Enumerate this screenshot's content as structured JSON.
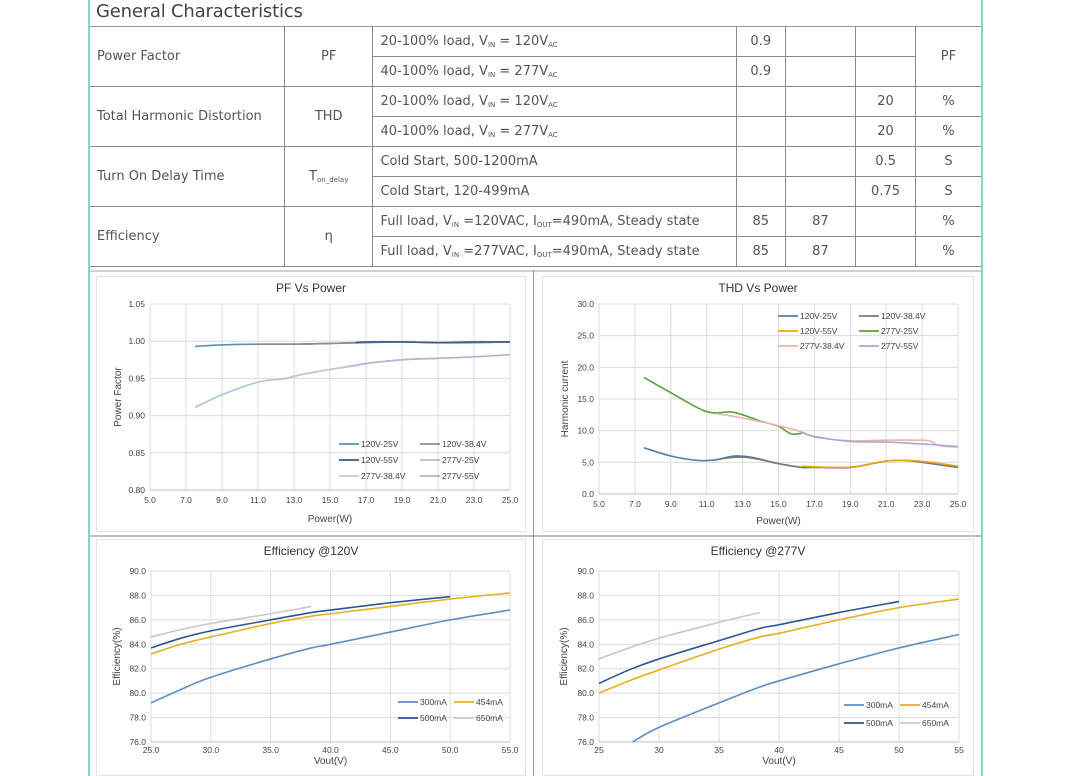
{
  "section_title": "General Characteristics",
  "table": {
    "rows": [
      {
        "param": "Power Factor",
        "symbol": "PF",
        "symbol_sub": "",
        "conditions": [
          {
            "text": "20-100% load, V",
            "sub1": "IN",
            "mid": " = 120V",
            "sub2": "AC",
            "tail": "",
            "min": "0.9",
            "typ": "",
            "max": ""
          },
          {
            "text": "40-100% load, V",
            "sub1": "IN",
            "mid": " = 277V",
            "sub2": "AC",
            "tail": "",
            "min": "0.9",
            "typ": "",
            "max": ""
          }
        ],
        "unit": "PF",
        "unit_merged": true
      },
      {
        "param": "Total Harmonic Distortion",
        "symbol": "THD",
        "symbol_sub": "",
        "conditions": [
          {
            "text": "20-100% load, V",
            "sub1": "IN",
            "mid": " = 120V",
            "sub2": "AC",
            "tail": "",
            "min": "",
            "typ": "",
            "max": "20",
            "unit": "%"
          },
          {
            "text": "40-100% load, V",
            "sub1": "IN",
            "mid": " = 277V",
            "sub2": "AC",
            "tail": "",
            "min": "",
            "typ": "",
            "max": "20",
            "unit": "%"
          }
        ]
      },
      {
        "param": "Turn On Delay Time",
        "symbol": "T",
        "symbol_sub": "on_delay",
        "conditions": [
          {
            "text": "Cold Start, 500-1200mA",
            "sub1": "",
            "mid": "",
            "sub2": "",
            "tail": "",
            "min": "",
            "typ": "",
            "max": "0.5",
            "unit": "S"
          },
          {
            "text": "Cold Start, 120-499mA",
            "sub1": "",
            "mid": "",
            "sub2": "",
            "tail": "",
            "min": "",
            "typ": "",
            "max": "0.75",
            "unit": "S"
          }
        ]
      },
      {
        "param": "Efficiency",
        "symbol": "η",
        "symbol_sub": "",
        "conditions": [
          {
            "text": "Full load, V",
            "sub1": "IN",
            "mid": " =120VAC, I",
            "sub2": "OUT",
            "tail": "=490mA, Steady state",
            "min": "85",
            "typ": "87",
            "max": "",
            "unit": "%"
          },
          {
            "text": "Full load, V",
            "sub1": "IN",
            "mid": " =277VAC, I",
            "sub2": "OUT",
            "tail": "=490mA, Steady state",
            "min": "85",
            "typ": "87",
            "max": "",
            "unit": "%"
          }
        ]
      }
    ]
  },
  "chart_data": [
    {
      "id": "pf",
      "type": "line",
      "title": "PF Vs Power",
      "xlabel": "Power(W)",
      "ylabel": "Power Factor",
      "xlim": [
        5.0,
        25.0
      ],
      "ylim": [
        0.8,
        1.05
      ],
      "xticks": [
        "5.0",
        "7.0",
        "9.0",
        "11.0",
        "13.0",
        "15.0",
        "17.0",
        "19.0",
        "21.0",
        "23.0",
        "25.0"
      ],
      "yticks": [
        "0.80",
        "0.85",
        "0.90",
        "0.95",
        "1.00",
        "1.05"
      ],
      "grid": true,
      "legend_position": "bottom-right",
      "legend_columns": 2,
      "series": [
        {
          "name": "120V-25V",
          "color": "#5b8db8",
          "points": [
            [
              7.5,
              0.993
            ],
            [
              9,
              0.995
            ],
            [
              11,
              0.996
            ],
            [
              13,
              0.996
            ],
            [
              15,
              0.997
            ],
            [
              16.4,
              0.998
            ]
          ]
        },
        {
          "name": "120V-38.4V",
          "color": "#8c8c8c",
          "points": [
            [
              11,
              0.996
            ],
            [
              13,
              0.996
            ],
            [
              15,
              0.997
            ],
            [
              17,
              0.998
            ],
            [
              19,
              0.999
            ],
            [
              21,
              0.998
            ],
            [
              23,
              0.998
            ],
            [
              25,
              0.999
            ]
          ]
        },
        {
          "name": "120V-55V",
          "color": "#3a5a8c",
          "points": [
            [
              16.4,
              0.998
            ],
            [
              17,
              0.999
            ],
            [
              19,
              0.999
            ],
            [
              21,
              0.998
            ],
            [
              23,
              0.999
            ],
            [
              25,
              0.999
            ]
          ]
        },
        {
          "name": "277V-25V",
          "color": "#a9c4dc",
          "points": [
            [
              7.5,
              0.911
            ],
            [
              9,
              0.928
            ],
            [
              11,
              0.945
            ],
            [
              12.5,
              0.95
            ],
            [
              14,
              0.958
            ],
            [
              16.4,
              0.967
            ]
          ]
        },
        {
          "name": "277V-38.4V",
          "color": "#c9c9c9",
          "points": [
            [
              11.5,
              0.948
            ],
            [
              12.5,
              0.949
            ],
            [
              13,
              0.953
            ],
            [
              15,
              0.962
            ],
            [
              17,
              0.97
            ],
            [
              19,
              0.975
            ],
            [
              21,
              0.977
            ]
          ]
        },
        {
          "name": "277V-55V",
          "color": "#aeb4d6",
          "points": [
            [
              16.4,
              0.967
            ],
            [
              17,
              0.97
            ],
            [
              19,
              0.975
            ],
            [
              21,
              0.977
            ],
            [
              23,
              0.979
            ],
            [
              25,
              0.982
            ]
          ]
        }
      ]
    },
    {
      "id": "thd",
      "type": "line",
      "title": "THD Vs Power",
      "xlabel": "Power(W)",
      "ylabel": "Harmonic current",
      "xlim": [
        5.0,
        25.0
      ],
      "ylim": [
        0.0,
        30.0
      ],
      "xticks": [
        "5.0",
        "7.0",
        "9.0",
        "11.0",
        "13.0",
        "15.0",
        "17.0",
        "19.0",
        "21.0",
        "23.0",
        "25.0"
      ],
      "yticks": [
        "0.0",
        "5.0",
        "10.0",
        "15.0",
        "20.0",
        "25.0",
        "30.0"
      ],
      "grid": true,
      "legend_position": "top-right",
      "legend_columns": 2,
      "series": [
        {
          "name": "120V-25V",
          "color": "#4f7fae",
          "points": [
            [
              7.5,
              7.3
            ],
            [
              9,
              6.0
            ],
            [
              10.5,
              5.3
            ],
            [
              11.5,
              5.4
            ],
            [
              12.5,
              6.0
            ],
            [
              13.5,
              5.8
            ],
            [
              15,
              4.8
            ],
            [
              16.3,
              4.2
            ]
          ]
        },
        {
          "name": "120V-38.4V",
          "color": "#777777",
          "points": [
            [
              11.5,
              5.4
            ],
            [
              12.5,
              5.8
            ],
            [
              13.5,
              5.7
            ],
            [
              15,
              4.8
            ],
            [
              16.3,
              4.2
            ],
            [
              17,
              4.2
            ],
            [
              19,
              4.2
            ],
            [
              21,
              5.2
            ],
            [
              22,
              5.3
            ],
            [
              23,
              5.0
            ],
            [
              25,
              4.2
            ]
          ]
        },
        {
          "name": "120V-55V",
          "color": "#e6a817",
          "points": [
            [
              16.3,
              4.4
            ],
            [
              17,
              4.3
            ],
            [
              18.5,
              4.2
            ],
            [
              19.5,
              4.4
            ],
            [
              21,
              5.2
            ],
            [
              22.3,
              5.3
            ],
            [
              23.5,
              5.0
            ],
            [
              25,
              4.4
            ]
          ]
        },
        {
          "name": "277V-25V",
          "color": "#5aa23c",
          "points": [
            [
              7.5,
              18.4
            ],
            [
              9,
              16.0
            ],
            [
              11,
              13.0
            ],
            [
              12.5,
              12.9
            ],
            [
              14,
              11.5
            ],
            [
              15,
              10.7
            ],
            [
              15.7,
              9.5
            ],
            [
              16.3,
              9.6
            ]
          ]
        },
        {
          "name": "277V-38.4V",
          "color": "#e8b4aa",
          "points": [
            [
              11.5,
              12.7
            ],
            [
              13,
              12.0
            ],
            [
              15,
              10.8
            ],
            [
              16.3,
              9.8
            ],
            [
              17,
              9.0
            ],
            [
              19,
              8.4
            ],
            [
              21,
              8.5
            ],
            [
              23,
              8.5
            ],
            [
              23.5,
              8.3
            ],
            [
              24,
              7.6
            ],
            [
              25,
              7.4
            ]
          ]
        },
        {
          "name": "277V-55V",
          "color": "#a7a8d8",
          "points": [
            [
              16.3,
              9.7
            ],
            [
              17,
              9.1
            ],
            [
              19,
              8.3
            ],
            [
              21,
              8.2
            ],
            [
              23,
              7.9
            ],
            [
              25,
              7.5
            ]
          ]
        }
      ]
    },
    {
      "id": "eff120",
      "type": "line",
      "title": "Efficiency @120V",
      "xlabel": "Vout(V)",
      "ylabel": "Efficiency(%)",
      "xlim": [
        25.0,
        55.0
      ],
      "ylim": [
        76.0,
        90.0
      ],
      "xticks": [
        "25.0",
        "30.0",
        "35.0",
        "40.0",
        "45.0",
        "50.0",
        "55.0"
      ],
      "yticks": [
        "76.0",
        "78.0",
        "80.0",
        "82.0",
        "84.0",
        "86.0",
        "88.0",
        "90.0"
      ],
      "grid": true,
      "legend_position": "bottom-right",
      "legend_columns": 2,
      "series": [
        {
          "name": "300mA",
          "color": "#5b8fc7",
          "points": [
            [
              25,
              79.2
            ],
            [
              27.5,
              80.3
            ],
            [
              30,
              81.3
            ],
            [
              35,
              82.8
            ],
            [
              38.4,
              83.7
            ],
            [
              40,
              84.0
            ],
            [
              45,
              85.0
            ],
            [
              50,
              86.0
            ],
            [
              55,
              86.8
            ]
          ]
        },
        {
          "name": "454mA",
          "color": "#e8b020",
          "points": [
            [
              25,
              83.2
            ],
            [
              27.5,
              84.0
            ],
            [
              30,
              84.6
            ],
            [
              35,
              85.7
            ],
            [
              38.4,
              86.3
            ],
            [
              40,
              86.5
            ],
            [
              45,
              87.1
            ],
            [
              50,
              87.7
            ],
            [
              55,
              88.2
            ]
          ]
        },
        {
          "name": "500mA",
          "color": "#2f5597",
          "points": [
            [
              25,
              83.7
            ],
            [
              27.5,
              84.5
            ],
            [
              30,
              85.1
            ],
            [
              35,
              86.0
            ],
            [
              38.4,
              86.6
            ],
            [
              40,
              86.8
            ],
            [
              45,
              87.4
            ],
            [
              50,
              87.9
            ]
          ]
        },
        {
          "name": "650mA",
          "color": "#c8c8c8",
          "points": [
            [
              25,
              84.6
            ],
            [
              27.5,
              85.2
            ],
            [
              30,
              85.7
            ],
            [
              35,
              86.5
            ],
            [
              38.4,
              87.1
            ]
          ]
        }
      ]
    },
    {
      "id": "eff277",
      "type": "line",
      "title": "Efficiency @277V",
      "xlabel": "Vout(V)",
      "ylabel": "Efficiency(%)",
      "xlim": [
        25,
        55
      ],
      "ylim": [
        76.0,
        90.0
      ],
      "xticks": [
        "25",
        "30",
        "35",
        "40",
        "45",
        "50",
        "55"
      ],
      "yticks": [
        "76.0",
        "78.0",
        "80.0",
        "82.0",
        "84.0",
        "86.0",
        "88.0",
        "90.0"
      ],
      "grid": true,
      "legend_position": "bottom-right",
      "legend_columns": 2,
      "series": [
        {
          "name": "300mA",
          "color": "#5b8fc7",
          "points": [
            [
              27.8,
              76.0
            ],
            [
              30,
              77.2
            ],
            [
              35,
              79.2
            ],
            [
              38.4,
              80.5
            ],
            [
              40,
              81.0
            ],
            [
              45,
              82.4
            ],
            [
              50,
              83.7
            ],
            [
              55,
              84.8
            ]
          ]
        },
        {
          "name": "454mA",
          "color": "#e8b020",
          "points": [
            [
              25,
              80.0
            ],
            [
              27.5,
              81.0
            ],
            [
              30,
              81.9
            ],
            [
              35,
              83.6
            ],
            [
              38.4,
              84.6
            ],
            [
              40,
              84.9
            ],
            [
              45,
              86.0
            ],
            [
              50,
              87.0
            ],
            [
              55,
              87.7
            ]
          ]
        },
        {
          "name": "500mA",
          "color": "#2f5597",
          "points": [
            [
              25,
              80.8
            ],
            [
              27.5,
              81.9
            ],
            [
              30,
              82.8
            ],
            [
              35,
              84.3
            ],
            [
              38.4,
              85.3
            ],
            [
              40,
              85.6
            ],
            [
              45,
              86.6
            ],
            [
              50,
              87.5
            ]
          ]
        },
        {
          "name": "650mA",
          "color": "#c8c8c8",
          "points": [
            [
              25,
              82.8
            ],
            [
              27.5,
              83.7
            ],
            [
              30,
              84.5
            ],
            [
              35,
              85.8
            ],
            [
              38.4,
              86.6
            ]
          ]
        }
      ]
    }
  ]
}
